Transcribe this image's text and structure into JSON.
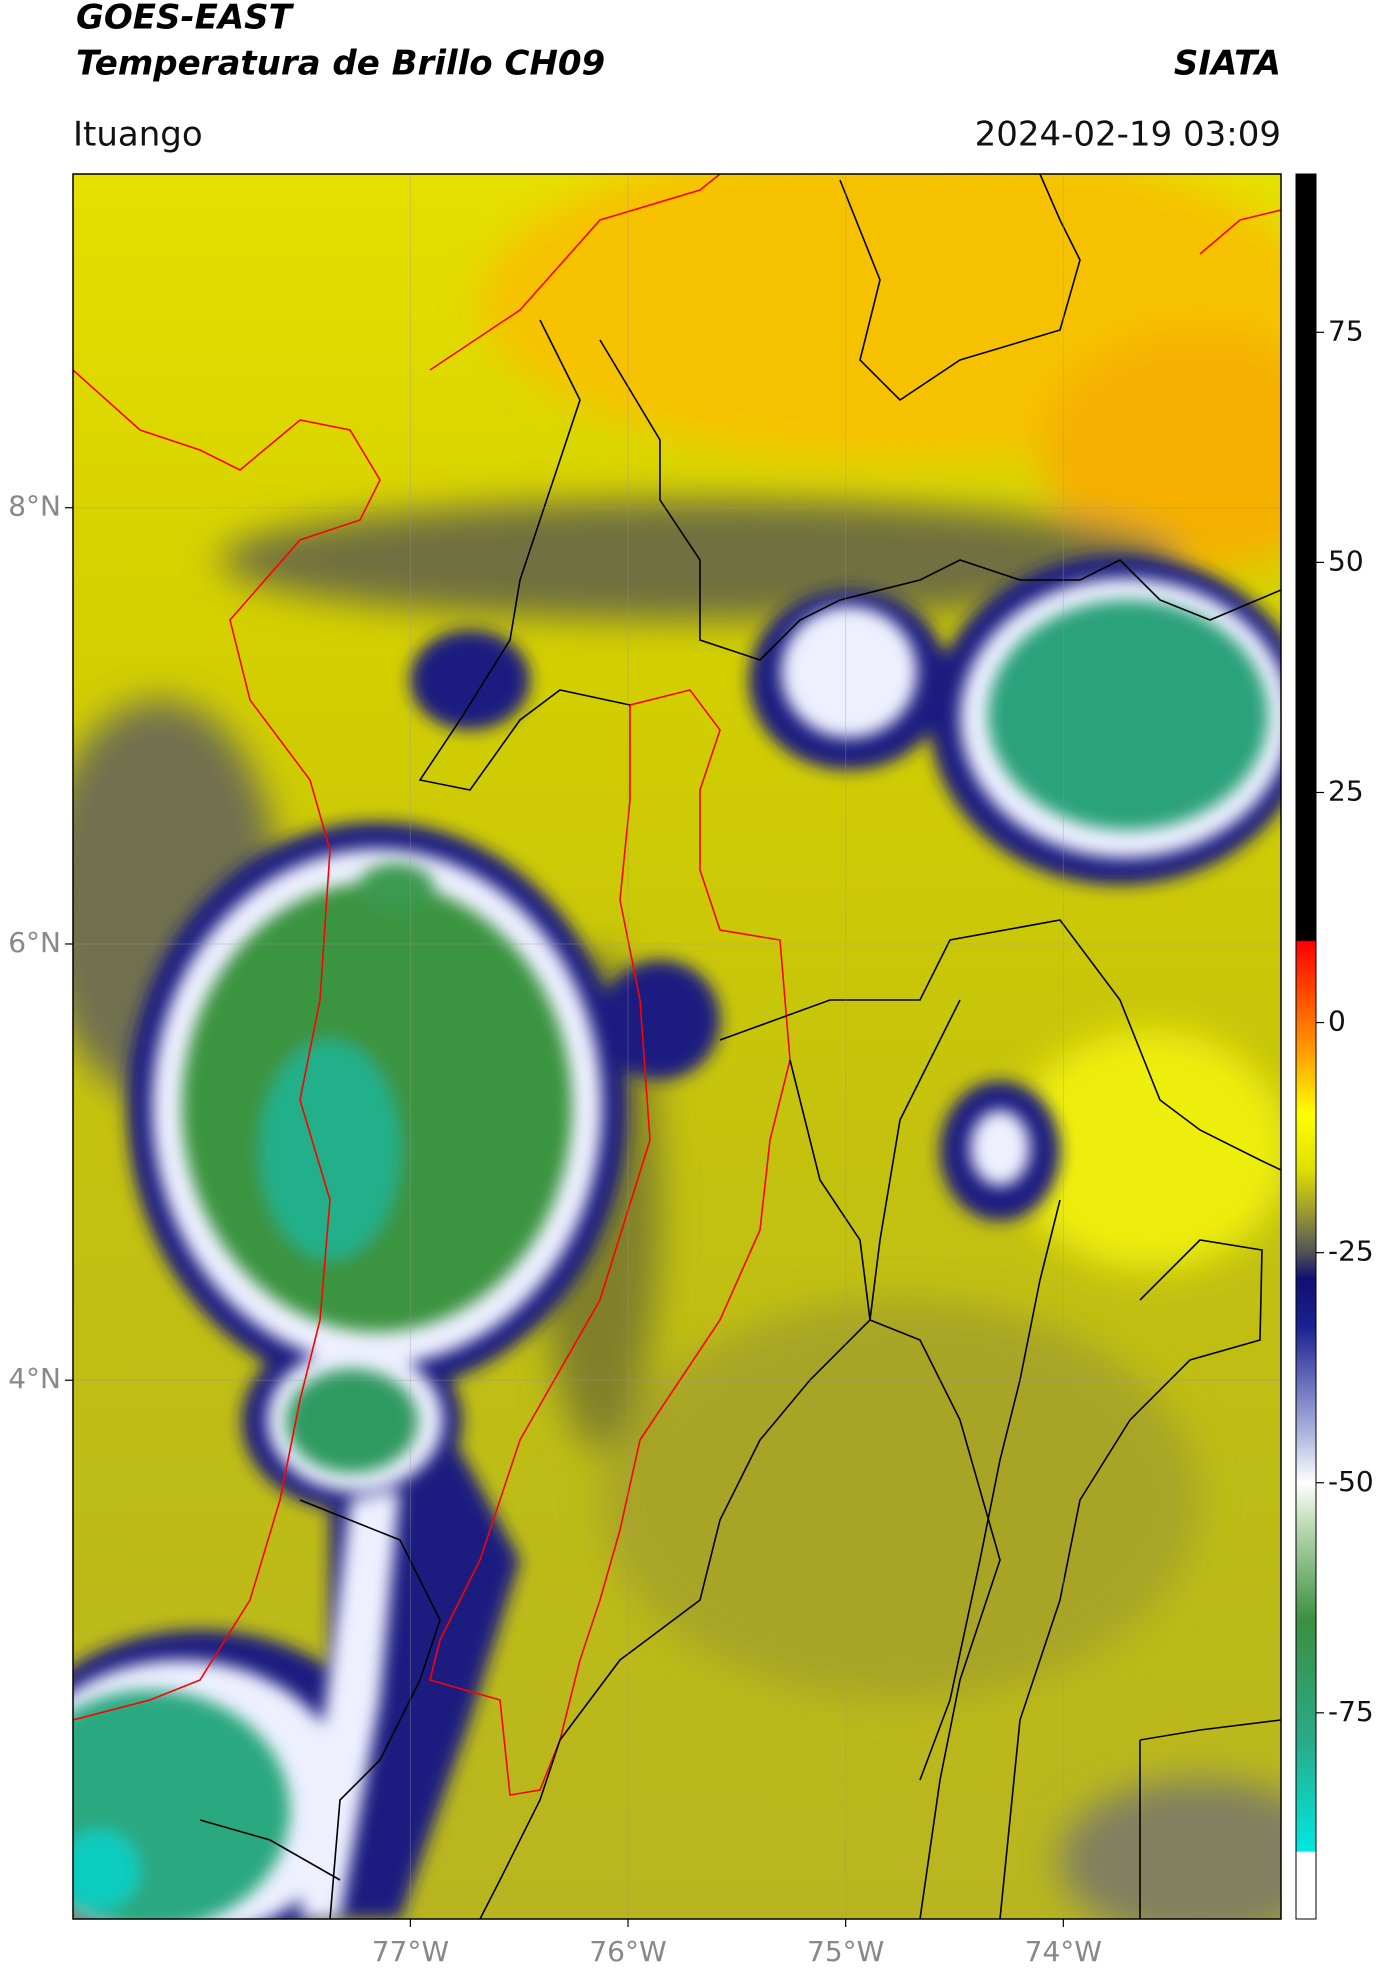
{
  "header": {
    "title": "GOES-EAST",
    "subtitle": "Temperatura de Brillo CH09",
    "brand": "SIATA",
    "location": "Ituango",
    "datetime": "2024-02-19 03:09"
  },
  "map": {
    "xlim": [
      -78.55,
      -73.0
    ],
    "ylim": [
      1.53,
      9.53
    ],
    "xticks": [
      {
        "value": -77,
        "label": "77°W"
      },
      {
        "value": -76,
        "label": "76°W"
      },
      {
        "value": -75,
        "label": "75°W"
      },
      {
        "value": -74,
        "label": "74°W"
      }
    ],
    "yticks": [
      {
        "value": 8,
        "label": "8°N"
      },
      {
        "value": 6,
        "label": "6°N"
      },
      {
        "value": 4,
        "label": "4°N"
      }
    ],
    "grid": true
  },
  "colorbar": {
    "lim": [
      -97.4,
      92.2
    ],
    "ticks": [
      75,
      50,
      25,
      0,
      -25,
      -50,
      -75
    ]
  }
}
